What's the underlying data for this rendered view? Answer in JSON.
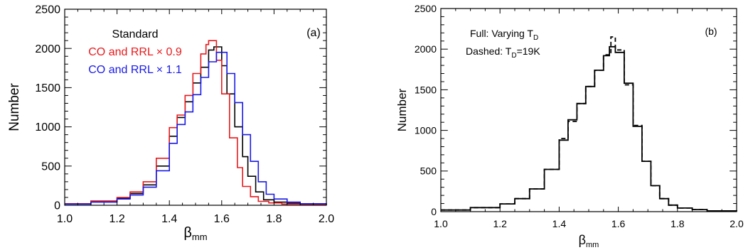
{
  "chart_data": [
    {
      "type": "line",
      "panel_label": "(a)",
      "xlabel": "β",
      "xlabel_sub": "mm",
      "ylabel": "Number",
      "xlim": [
        1.0,
        2.0
      ],
      "ylim": [
        0,
        2500
      ],
      "xticks": [
        "1.0",
        "1.2",
        "1.4",
        "1.6",
        "1.8",
        "2.0"
      ],
      "yticks": [
        "0",
        "500",
        "1000",
        "1500",
        "2000",
        "2500"
      ],
      "legend": [
        {
          "text": "Standard",
          "color": "#000000"
        },
        {
          "text": "CO and RRL × 0.9",
          "color": "#e8191c"
        },
        {
          "text": "CO and RRL × 1.1",
          "color": "#1a1ae6"
        }
      ],
      "series": [
        {
          "name": "Standard",
          "color": "#000000",
          "dash": false,
          "x": [
            1.0,
            1.1,
            1.2,
            1.25,
            1.3,
            1.35,
            1.4,
            1.43,
            1.46,
            1.49,
            1.52,
            1.55,
            1.57,
            1.6,
            1.62,
            1.65,
            1.68,
            1.7,
            1.73,
            1.76,
            1.8,
            1.85,
            1.9,
            2.0
          ],
          "y": [
            20,
            50,
            90,
            150,
            260,
            500,
            880,
            1120,
            1320,
            1560,
            1760,
            1980,
            2020,
            1780,
            1420,
            1000,
            620,
            370,
            170,
            70,
            40,
            25,
            10,
            5
          ]
        },
        {
          "name": "CO and RRL × 0.9",
          "color": "#e8191c",
          "dash": false,
          "x": [
            1.0,
            1.1,
            1.2,
            1.25,
            1.3,
            1.35,
            1.4,
            1.43,
            1.46,
            1.49,
            1.52,
            1.54,
            1.55,
            1.58,
            1.6,
            1.63,
            1.66,
            1.68,
            1.71,
            1.74,
            1.78,
            1.83,
            1.9,
            2.0
          ],
          "y": [
            20,
            55,
            100,
            170,
            300,
            600,
            990,
            1150,
            1400,
            1680,
            1930,
            2050,
            2100,
            1850,
            1420,
            860,
            480,
            240,
            110,
            50,
            30,
            15,
            10,
            5
          ]
        },
        {
          "name": "CO and RRL × 1.1",
          "color": "#1a1ae6",
          "dash": false,
          "x": [
            1.0,
            1.1,
            1.2,
            1.25,
            1.3,
            1.35,
            1.4,
            1.43,
            1.46,
            1.49,
            1.52,
            1.55,
            1.58,
            1.59,
            1.62,
            1.65,
            1.68,
            1.71,
            1.74,
            1.77,
            1.8,
            1.85,
            1.9,
            2.0
          ],
          "y": [
            15,
            40,
            80,
            130,
            230,
            440,
            790,
            1030,
            1190,
            1410,
            1630,
            1830,
            1950,
            1950,
            1680,
            1310,
            900,
            560,
            300,
            140,
            80,
            40,
            20,
            5
          ]
        }
      ]
    },
    {
      "type": "line",
      "panel_label": "(b)",
      "xlabel": "β",
      "xlabel_sub": "mm",
      "ylabel": "Number",
      "xlim": [
        1.0,
        2.0
      ],
      "ylim": [
        0,
        2500
      ],
      "xticks": [
        "1.0",
        "1.2",
        "1.4",
        "1.6",
        "1.8",
        "2.0"
      ],
      "yticks": [
        "0",
        "500",
        "1000",
        "1500",
        "2000",
        "2500"
      ],
      "legend": [
        {
          "text": "Full: Varying T",
          "sub": "D",
          "color": "#000000"
        },
        {
          "text": "Dashed:  T",
          "sub": "D",
          "tail": "=19K",
          "color": "#000000"
        }
      ],
      "series": [
        {
          "name": "Full: Varying T_D",
          "color": "#000000",
          "dash": false,
          "x": [
            1.0,
            1.1,
            1.2,
            1.25,
            1.3,
            1.35,
            1.4,
            1.43,
            1.46,
            1.49,
            1.52,
            1.55,
            1.57,
            1.59,
            1.62,
            1.65,
            1.68,
            1.71,
            1.74,
            1.77,
            1.8,
            1.85,
            1.9,
            2.0
          ],
          "y": [
            20,
            50,
            95,
            160,
            280,
            520,
            880,
            1130,
            1330,
            1540,
            1740,
            1920,
            2030,
            1960,
            1580,
            1050,
            620,
            320,
            160,
            80,
            45,
            25,
            10,
            5
          ]
        },
        {
          "name": "Dashed: T_D=19K",
          "color": "#000000",
          "dash": true,
          "x": [
            1.0,
            1.1,
            1.2,
            1.25,
            1.3,
            1.35,
            1.4,
            1.43,
            1.46,
            1.49,
            1.52,
            1.55,
            1.575,
            1.59,
            1.62,
            1.65,
            1.68,
            1.71,
            1.74,
            1.77,
            1.8,
            1.85,
            1.9,
            2.0
          ],
          "y": [
            20,
            50,
            95,
            160,
            280,
            520,
            900,
            1110,
            1330,
            1540,
            1740,
            1930,
            2150,
            1990,
            1560,
            1060,
            620,
            320,
            160,
            80,
            45,
            25,
            10,
            5
          ]
        }
      ]
    }
  ]
}
